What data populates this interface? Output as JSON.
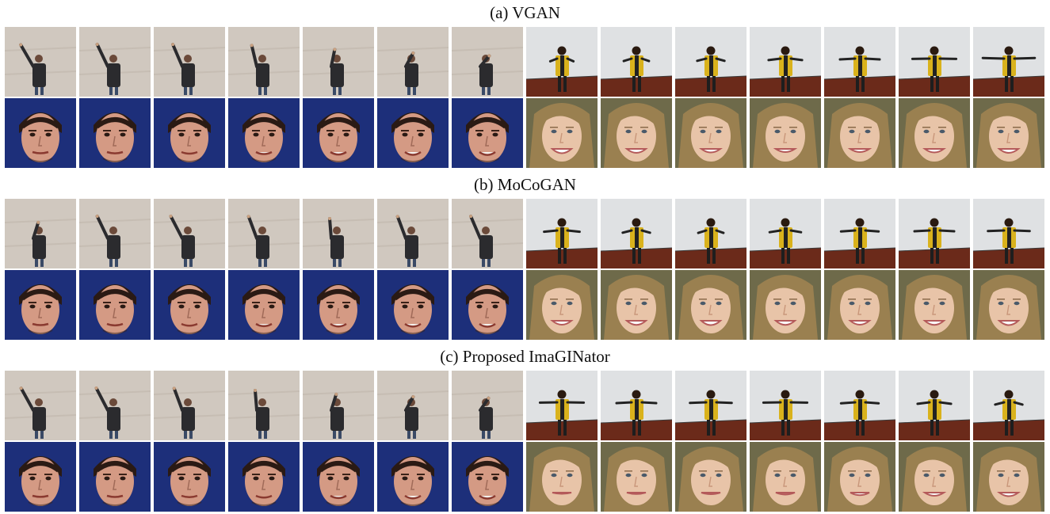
{
  "figure": {
    "sections": [
      {
        "title": "(a) VGAN",
        "rows": [
          {
            "subject": "waving person (gray wall)",
            "frames": 7,
            "scene": "wall",
            "arm": [
              0.95,
              0.8,
              0.75,
              0.6,
              0.35,
              0.2,
              0.1
            ]
          },
          {
            "subject": "person in yellow vest (dark room)",
            "frames": 7,
            "scene": "room",
            "arm": [
              0.1,
              0.15,
              0.2,
              0.35,
              0.5,
              0.6,
              0.8
            ]
          },
          {
            "subject": "man's face (blue background)",
            "frames": 7,
            "scene": "face-male",
            "smile": [
              0.1,
              0.15,
              0.3,
              0.5,
              0.7,
              0.85,
              0.9
            ]
          },
          {
            "subject": "girl's face (blonde hair)",
            "frames": 7,
            "scene": "face-girl",
            "smile": [
              0.8,
              0.7,
              0.6,
              0.5,
              0.5,
              0.6,
              0.7
            ]
          }
        ]
      },
      {
        "title": "(b) MoCoGAN",
        "rows": [
          {
            "subject": "waving person (gray wall)",
            "frames": 7,
            "scene": "wall",
            "arm": [
              0.3,
              0.8,
              0.85,
              0.7,
              0.5,
              0.7,
              0.75
            ]
          },
          {
            "subject": "person in yellow vest (dark room)",
            "frames": 7,
            "scene": "room",
            "arm": [
              0.4,
              0.2,
              0.15,
              0.3,
              0.45,
              0.5,
              0.55
            ]
          },
          {
            "subject": "man's face (blue background)",
            "frames": 7,
            "scene": "face-male",
            "smile": [
              0.1,
              0.25,
              0.4,
              0.6,
              0.75,
              0.8,
              0.85
            ]
          },
          {
            "subject": "girl's face (blonde hair)",
            "frames": 7,
            "scene": "face-girl",
            "smile": [
              0.7,
              0.75,
              0.8,
              0.75,
              0.7,
              0.75,
              0.8
            ]
          }
        ]
      },
      {
        "title": "(c) Proposed ImaGINator",
        "rows": [
          {
            "subject": "waving person (gray wall)",
            "frames": 7,
            "scene": "wall",
            "arm": [
              0.9,
              0.85,
              0.7,
              0.5,
              0.3,
              0.2,
              0.15
            ]
          },
          {
            "subject": "person in yellow vest (dark room)",
            "frames": 7,
            "scene": "room",
            "arm": [
              0.6,
              0.5,
              0.55,
              0.6,
              0.45,
              0.35,
              0.2
            ]
          },
          {
            "subject": "man's face (blue background)",
            "frames": 7,
            "scene": "face-male",
            "smile": [
              0.05,
              0.1,
              0.2,
              0.4,
              0.6,
              0.75,
              0.85
            ]
          },
          {
            "subject": "girl's face (blonde hair)",
            "frames": 7,
            "scene": "face-girl",
            "smile": [
              0.0,
              0.05,
              0.1,
              0.2,
              0.35,
              0.5,
              0.6
            ]
          }
        ]
      }
    ]
  },
  "colors": {
    "wall": "#d8d0c8",
    "wall_dark": "#b8aea4",
    "room_wall": "#d4d6d8",
    "room_floor": "#6b2a1a",
    "vest": "#d9b21c",
    "skin_male": "#d49a84",
    "hair_male": "#2a1a14",
    "bg_blue": "#1d2f7a",
    "skin_girl": "#e8c4a8",
    "hair_girl": "#9a8050",
    "clothes_dark": "#2b2b2e",
    "jeans": "#3a4a66"
  }
}
